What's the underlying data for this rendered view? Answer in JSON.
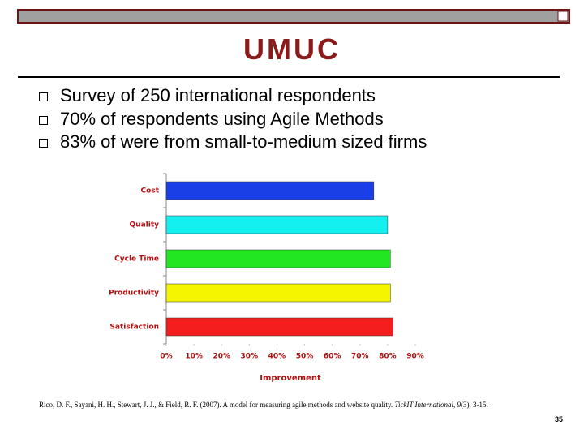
{
  "slide": {
    "title": "UMUC",
    "bullets": [
      "Survey of 250 international respondents",
      "70% of respondents using Agile Methods",
      "83% of were from small-to-medium sized firms"
    ],
    "citation": [
      "Rico, D. F., Sayani, H. H., Stewart, J. J., & Field, R. F. (2007). A model for measuring agile methods and website quality. ",
      "TickIT International, 9",
      "(3), 3-15."
    ],
    "page_number": "35"
  },
  "chart_data": {
    "type": "hbar",
    "xlabel": "Improvement",
    "categories": [
      "Cost",
      "Quality",
      "Cycle Time",
      "Productivity",
      "Satisfaction"
    ],
    "values": [
      75,
      80,
      81,
      81,
      82
    ],
    "colors": [
      "#1a3fe6",
      "#14f0f0",
      "#22e622",
      "#f5f500",
      "#f51e1e"
    ],
    "xlim": [
      0,
      90
    ],
    "xticks": [
      {
        "value": 0,
        "label": "0%"
      },
      {
        "value": 10,
        "label": "10%"
      },
      {
        "value": 20,
        "label": "20%"
      },
      {
        "value": 30,
        "label": "30%"
      },
      {
        "value": 40,
        "label": "40%"
      },
      {
        "value": 50,
        "label": "50%"
      },
      {
        "value": 60,
        "label": "60%"
      },
      {
        "value": 70,
        "label": "70%"
      },
      {
        "value": 80,
        "label": "80%"
      },
      {
        "value": 90,
        "label": "90%"
      }
    ]
  }
}
